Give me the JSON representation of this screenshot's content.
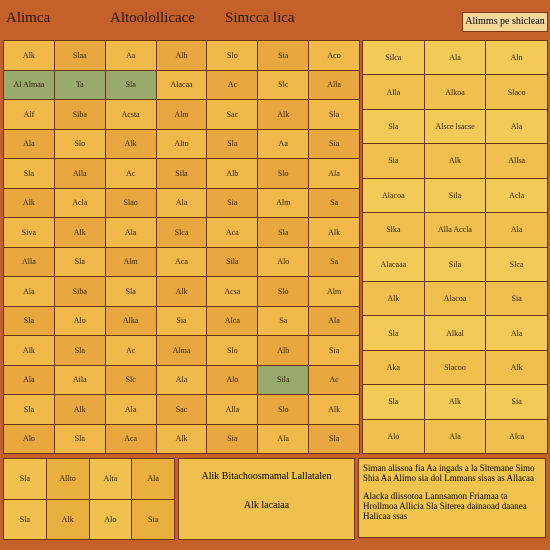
{
  "header": {
    "left": "Alimca",
    "center": "Altoolollicace",
    "right": "Simcca lica",
    "badge": "Alimms pe shiclean"
  },
  "left_table": {
    "rows": [
      [
        "Alk",
        "Slaa",
        "Aa",
        "Alb",
        "Slo",
        "Sia",
        "Aco"
      ],
      [
        "Al Almaa",
        "Ta",
        "Sla",
        "Alacaa",
        "Ac",
        "Slc",
        "Alla"
      ],
      [
        "Alf",
        "Siba",
        "Acsta",
        "Alm",
        "Sac",
        "Alk",
        "Sla"
      ],
      [
        "Ala",
        "Slo",
        "Alk",
        "Alto",
        "Sla",
        "Aa",
        "Sia"
      ],
      [
        "Sla",
        "Alla",
        "Ac",
        "Sila",
        "Alb",
        "Slo",
        "Ala"
      ],
      [
        "Alk",
        "Acla",
        "Slao",
        "Ala",
        "Sia",
        "Alm",
        "Sa"
      ],
      [
        "Siva",
        "Alk",
        "Ala",
        "Slca",
        "Aca",
        "Sla",
        "Alk"
      ],
      [
        "Alla",
        "Sla",
        "Alm",
        "Aca",
        "Sila",
        "Alo",
        "Sa"
      ],
      [
        "Ala",
        "Siba",
        "Sla",
        "Alk",
        "Acsa",
        "Slo",
        "Alm"
      ],
      [
        "Sla",
        "Alo",
        "Alka",
        "Sia",
        "Alca",
        "Sa",
        "Ala"
      ],
      [
        "Alk",
        "Sla",
        "Ac",
        "Alma",
        "Slo",
        "Alb",
        "Sia"
      ],
      [
        "Ala",
        "Aila",
        "Slc",
        "Ala",
        "Alo",
        "Sila",
        "Ac"
      ],
      [
        "Sla",
        "Alk",
        "Ala",
        "Sac",
        "Alla",
        "Slo",
        "Alk"
      ],
      [
        "Alo",
        "Sla",
        "Aca",
        "Alk",
        "Sia",
        "Ala",
        "Sla"
      ]
    ]
  },
  "right_table": {
    "rows": [
      [
        "Silca",
        "Ala",
        "Aln"
      ],
      [
        "Alla",
        "Alkoa",
        "Slaco"
      ],
      [
        "Sla",
        "Alsce lsacse",
        "Ala"
      ],
      [
        "Sia",
        "Alk",
        "Allsa"
      ],
      [
        "Alacoa",
        "Sila",
        "Acla"
      ],
      [
        "Slka",
        "Alla Accla",
        "Ala"
      ],
      [
        "Alacaaa",
        "Sila",
        "Slca"
      ],
      [
        "Alk",
        "Alacoa",
        "Sia"
      ],
      [
        "Sla",
        "Alkal",
        "Ala"
      ],
      [
        "Aka",
        "Slacoo",
        "Alk"
      ],
      [
        "Sla",
        "Alk",
        "Sia"
      ],
      [
        "Alo",
        "Ala",
        "Alca"
      ]
    ]
  },
  "footer": {
    "cells": [
      "Sla",
      "Allto",
      "Alta",
      "Ala",
      "Sla",
      "Alk",
      "Alo",
      "Sia"
    ],
    "center": "Alik Bitachoosmamal Lallatalen",
    "center_note": "Alk lacaiaa",
    "right_1": "Siman alissoa fia Aa ingads a la Sltemane Simo Shia Aa Alimo sia dol Lmmans sisas as Allacaa",
    "right_2": "Alacka dlissotoa Lannsamon Friamaa ta Hrollmoa Allicia Sla Siterea dainaoad daanea Halicaa ssas"
  }
}
